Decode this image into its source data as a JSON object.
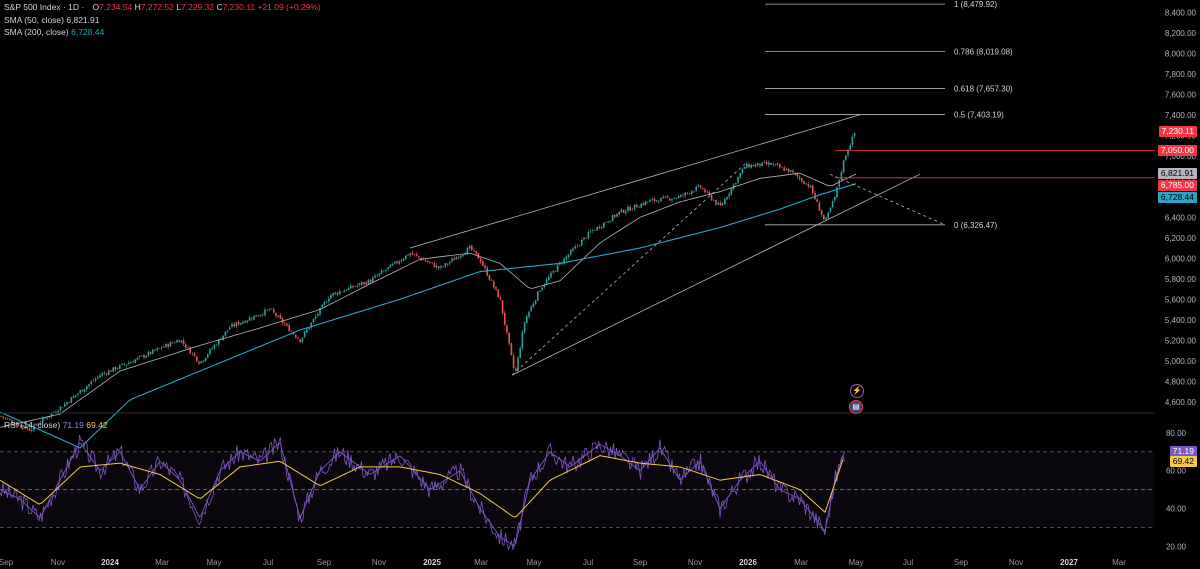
{
  "header": {
    "symbol": "S&P 500 Index · 1D ·",
    "open_label": "O",
    "open": "7,234.54",
    "high_label": "H",
    "high": "7,272.52",
    "low_label": "L",
    "low": "7,229.32",
    "close_label": "C",
    "close": "7,230.11",
    "change": "+21.09 (+0.29%)"
  },
  "indicators": {
    "sma50_label": "SMA (50, close)",
    "sma50_value": "6,821.91",
    "sma200_label": "SMA (200, close)",
    "sma200_value": "6,728.44",
    "rsi_label": "RSI (14, close)",
    "rsi_value": "71.19",
    "rsi_ma_value": "69.42"
  },
  "price_tags": {
    "last": "7,230.11",
    "level_a": "7,050.00",
    "sma50": "6,821.91",
    "level_b": "6,785.00",
    "sma200": "6,728.44"
  },
  "fib_labels": [
    {
      "label": "1 (8,479.92)",
      "price": 8479.92
    },
    {
      "label": "0.786 (8,019.08)",
      "price": 8019.08
    },
    {
      "label": "0.618 (7,657.30)",
      "price": 7657.3
    },
    {
      "label": "0.5 (7,403.19)",
      "price": 7403.19
    },
    {
      "label": "0 (6,326.47)",
      "price": 6326.47
    }
  ],
  "colors": {
    "up": "#26a69a",
    "down": "#ef5350",
    "sma50": "#b2b5be",
    "sma200": "#26a6c9",
    "rsi": "#7e57c2",
    "rsi_ma": "#f7c948",
    "red_tag": "#f23645"
  },
  "chart_data": {
    "type": "candlestick",
    "price_axis": {
      "ticks": [
        "8,400.00",
        "8,200.00",
        "8,000.00",
        "7,800.00",
        "7,600.00",
        "7,400.00",
        "7,200.00",
        "7,000.00",
        "6,800.00",
        "6,600.00",
        "6,400.00",
        "6,200.00",
        "6,000.00",
        "5,800.00",
        "5,600.00",
        "5,400.00",
        "5,200.00",
        "5,000.00",
        "4,800.00",
        "4,600.00"
      ],
      "range": [
        4500,
        8520
      ]
    },
    "rsi_axis": {
      "ticks": [
        "80.00",
        "60.00",
        "40.00",
        "20.00"
      ],
      "range": [
        17,
        90
      ],
      "bands": [
        70,
        50,
        30
      ]
    },
    "time_axis": [
      "Sep",
      "Nov",
      "2024",
      "Mar",
      "May",
      "Jul",
      "Sep",
      "Nov",
      "2025",
      "Mar",
      "May",
      "Jul",
      "Sep",
      "Nov",
      "2026",
      "Mar",
      "May",
      "Jul",
      "Sep",
      "Nov",
      "2027",
      "Mar"
    ],
    "price_path": [
      [
        0,
        4460
      ],
      [
        30,
        4330
      ],
      [
        65,
        4580
      ],
      [
        100,
        4860
      ],
      [
        140,
        5030
      ],
      [
        180,
        5210
      ],
      [
        200,
        4980
      ],
      [
        230,
        5330
      ],
      [
        270,
        5500
      ],
      [
        300,
        5200
      ],
      [
        330,
        5640
      ],
      [
        370,
        5780
      ],
      [
        410,
        6050
      ],
      [
        440,
        5900
      ],
      [
        470,
        6100
      ],
      [
        480,
        5990
      ],
      [
        500,
        5600
      ],
      [
        515,
        4860
      ],
      [
        525,
        5400
      ],
      [
        540,
        5700
      ],
      [
        560,
        5950
      ],
      [
        590,
        6250
      ],
      [
        620,
        6450
      ],
      [
        650,
        6560
      ],
      [
        680,
        6600
      ],
      [
        700,
        6700
      ],
      [
        720,
        6500
      ],
      [
        745,
        6900
      ],
      [
        770,
        6920
      ],
      [
        790,
        6850
      ],
      [
        810,
        6700
      ],
      [
        825,
        6350
      ],
      [
        835,
        6600
      ],
      [
        845,
        7000
      ],
      [
        855,
        7230
      ]
    ],
    "sma50_path": [
      [
        0,
        4350
      ],
      [
        60,
        4480
      ],
      [
        120,
        4900
      ],
      [
        200,
        5150
      ],
      [
        260,
        5320
      ],
      [
        320,
        5500
      ],
      [
        370,
        5750
      ],
      [
        420,
        5990
      ],
      [
        470,
        6050
      ],
      [
        500,
        5950
      ],
      [
        530,
        5700
      ],
      [
        560,
        5780
      ],
      [
        600,
        6150
      ],
      [
        640,
        6400
      ],
      [
        680,
        6550
      ],
      [
        720,
        6650
      ],
      [
        760,
        6780
      ],
      [
        800,
        6830
      ],
      [
        830,
        6700
      ],
      [
        856,
        6822
      ]
    ],
    "sma200_path": [
      [
        0,
        4500
      ],
      [
        80,
        4150
      ],
      [
        130,
        4620
      ],
      [
        200,
        4900
      ],
      [
        300,
        5300
      ],
      [
        400,
        5600
      ],
      [
        480,
        5870
      ],
      [
        560,
        5950
      ],
      [
        640,
        6100
      ],
      [
        720,
        6300
      ],
      [
        780,
        6480
      ],
      [
        820,
        6620
      ],
      [
        856,
        6728
      ]
    ],
    "channel_upper": [
      [
        410,
        6100
      ],
      [
        860,
        7400
      ]
    ],
    "channel_lower": [
      [
        512,
        4860
      ],
      [
        920,
        6820
      ]
    ],
    "trend_up_dashed": [
      [
        512,
        4860
      ],
      [
        745,
        6920
      ]
    ],
    "trend_down_dashed": [
      [
        830,
        6820
      ],
      [
        945,
        6326
      ]
    ],
    "hlines": [
      {
        "price": 7050,
        "from": 835,
        "to": 1155,
        "color": "#f23645"
      },
      {
        "price": 6785,
        "from": 835,
        "to": 1155,
        "color": "#f23645"
      }
    ],
    "rsi_path": [
      [
        0,
        50
      ],
      [
        20,
        45
      ],
      [
        40,
        35
      ],
      [
        60,
        55
      ],
      [
        80,
        75
      ],
      [
        100,
        60
      ],
      [
        120,
        70
      ],
      [
        140,
        50
      ],
      [
        160,
        65
      ],
      [
        180,
        55
      ],
      [
        200,
        35
      ],
      [
        220,
        60
      ],
      [
        240,
        70
      ],
      [
        260,
        65
      ],
      [
        280,
        75
      ],
      [
        300,
        35
      ],
      [
        320,
        60
      ],
      [
        340,
        70
      ],
      [
        370,
        58
      ],
      [
        400,
        68
      ],
      [
        430,
        50
      ],
      [
        460,
        60
      ],
      [
        480,
        40
      ],
      [
        500,
        25
      ],
      [
        515,
        20
      ],
      [
        530,
        55
      ],
      [
        550,
        70
      ],
      [
        570,
        62
      ],
      [
        600,
        74
      ],
      [
        620,
        68
      ],
      [
        640,
        60
      ],
      [
        660,
        72
      ],
      [
        680,
        55
      ],
      [
        700,
        65
      ],
      [
        720,
        40
      ],
      [
        740,
        55
      ],
      [
        760,
        65
      ],
      [
        780,
        50
      ],
      [
        800,
        45
      ],
      [
        815,
        35
      ],
      [
        825,
        28
      ],
      [
        835,
        55
      ],
      [
        845,
        71
      ]
    ],
    "rsi_ma_path": [
      [
        0,
        55
      ],
      [
        40,
        42
      ],
      [
        80,
        62
      ],
      [
        120,
        64
      ],
      [
        160,
        58
      ],
      [
        200,
        45
      ],
      [
        240,
        62
      ],
      [
        280,
        65
      ],
      [
        320,
        52
      ],
      [
        360,
        62
      ],
      [
        400,
        62
      ],
      [
        440,
        58
      ],
      [
        480,
        48
      ],
      [
        515,
        35
      ],
      [
        550,
        55
      ],
      [
        600,
        68
      ],
      [
        640,
        64
      ],
      [
        680,
        62
      ],
      [
        720,
        55
      ],
      [
        760,
        58
      ],
      [
        800,
        50
      ],
      [
        825,
        38
      ],
      [
        845,
        69
      ]
    ]
  }
}
